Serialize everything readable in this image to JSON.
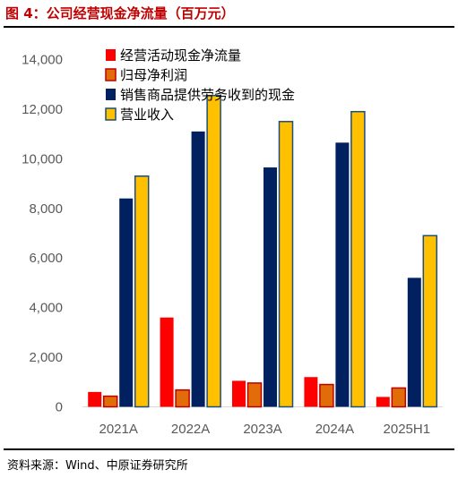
{
  "figure": {
    "title": "图 4：公司经营现金净流量（百万元）",
    "source": "资料来源：Wind、中原证券研究所"
  },
  "chart_data": {
    "type": "bar",
    "title": "",
    "xlabel": "",
    "ylabel": "",
    "categories": [
      "2021A",
      "2022A",
      "2023A",
      "2024A",
      "2025H1"
    ],
    "ylim": [
      0,
      14000
    ],
    "yticks": [
      0,
      2000,
      4000,
      6000,
      8000,
      10000,
      12000,
      14000
    ],
    "ytick_labels": [
      "0",
      "2,000",
      "4,000",
      "6,000",
      "8,000",
      "10,000",
      "12,000",
      "14,000"
    ],
    "grid": false,
    "legend_position": "top-left",
    "series": [
      {
        "name": "经营活动现金净流量",
        "color": "#ff0000",
        "values": [
          600,
          3600,
          1050,
          1200,
          400
        ]
      },
      {
        "name": "归母净利润",
        "color": "#e26b0a",
        "edge": "#c00000",
        "values": [
          430,
          680,
          960,
          900,
          760
        ]
      },
      {
        "name": "销售商品提供劳务收到的现金",
        "color": "#002060",
        "values": [
          8400,
          11100,
          9650,
          10650,
          5200
        ]
      },
      {
        "name": "营业收入",
        "color": "#ffc000",
        "edge": "#1f4e79",
        "values": [
          9300,
          12550,
          11500,
          11900,
          6900
        ]
      }
    ]
  }
}
